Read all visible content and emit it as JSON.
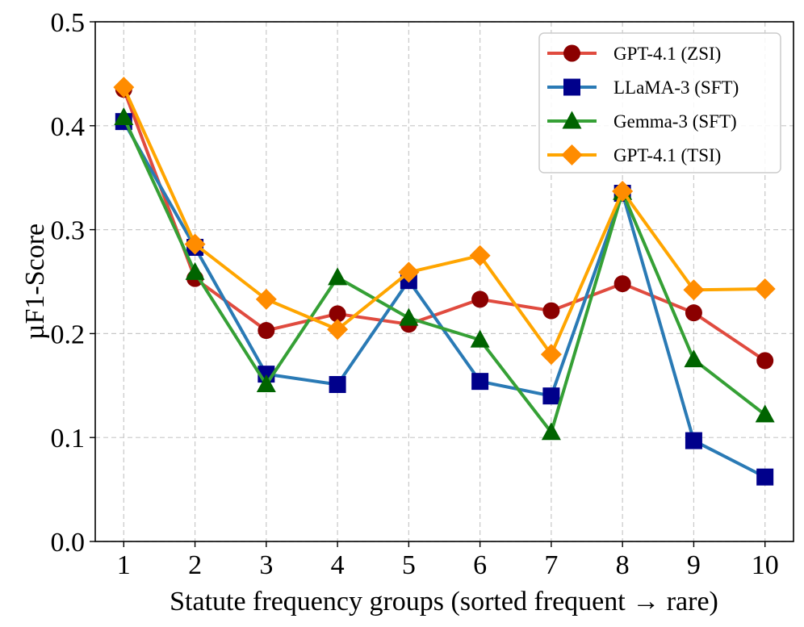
{
  "chart_data": {
    "type": "line",
    "title": "",
    "xlabel": "Statute frequency groups (sorted frequent → rare)",
    "ylabel": "µF1-Score",
    "x": [
      1,
      2,
      3,
      4,
      5,
      6,
      7,
      8,
      9,
      10
    ],
    "x_tick_labels": [
      "1",
      "2",
      "3",
      "4",
      "5",
      "6",
      "7",
      "8",
      "9",
      "10"
    ],
    "y_ticks": [
      0.0,
      0.1,
      0.2,
      0.3,
      0.4,
      0.5
    ],
    "y_tick_labels": [
      "0.0",
      "0.1",
      "0.2",
      "0.3",
      "0.4",
      "0.5"
    ],
    "xlim": [
      0.6,
      10.4
    ],
    "ylim": [
      0.0,
      0.5
    ],
    "grid": true,
    "legend_position": "top-right",
    "series": [
      {
        "name": "GPT-4.1 (ZSI)",
        "color": "#e04b3f",
        "marker": "circle",
        "marker_color": "#8b0000",
        "values": [
          0.435,
          0.253,
          0.203,
          0.219,
          0.209,
          0.233,
          0.222,
          0.248,
          0.22,
          0.174
        ]
      },
      {
        "name": "LLaMA-3 (SFT)",
        "color": "#2a7ab5",
        "marker": "square",
        "marker_color": "#00008b",
        "values": [
          0.404,
          0.283,
          0.161,
          0.151,
          0.251,
          0.154,
          0.14,
          0.335,
          0.097,
          0.062
        ]
      },
      {
        "name": "Gemma-3 (SFT)",
        "color": "#35a035",
        "marker": "triangle",
        "marker_color": "#006400",
        "values": [
          0.408,
          0.259,
          0.151,
          0.254,
          0.215,
          0.194,
          0.105,
          0.336,
          0.175,
          0.122
        ]
      },
      {
        "name": "GPT-4.1 (TSI)",
        "color": "#ffa500",
        "marker": "diamond",
        "marker_color": "#ff8c00",
        "values": [
          0.437,
          0.286,
          0.233,
          0.204,
          0.259,
          0.275,
          0.18,
          0.337,
          0.242,
          0.243
        ]
      }
    ]
  }
}
